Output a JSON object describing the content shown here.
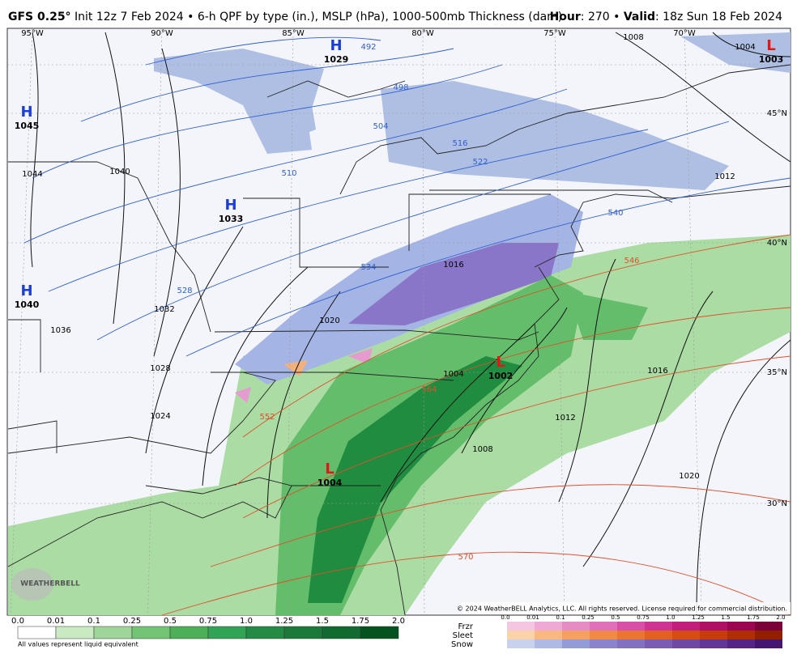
{
  "header": {
    "model": "GFS 0.25°",
    "description": "Init 12z 7 Feb 2024 • 6-h QPF by type (in.), MSLP (hPa), 1000-500mb Thickness (dam)",
    "hour_label": "Hour",
    "hour": ": 270",
    "separator": "•",
    "valid_label": "Valid",
    "valid": ": 18z Sun 18 Feb 2024"
  },
  "map": {
    "longitudes": [
      "95°W",
      "90°W",
      "85°W",
      "80°W",
      "75°W",
      "70°W"
    ],
    "latitudes": [
      "45°N",
      "40°N",
      "35°N",
      "30°N"
    ],
    "centers": [
      {
        "letter": "H",
        "value": "1029"
      },
      {
        "letter": "H",
        "value": "1045"
      },
      {
        "letter": "H",
        "value": "1033"
      },
      {
        "letter": "H",
        "value": "1040"
      },
      {
        "letter": "L",
        "value": "1003"
      },
      {
        "letter": "L",
        "value": "1002"
      },
      {
        "letter": "L",
        "value": "1004"
      }
    ],
    "isobar_labels": [
      "1008",
      "1004",
      "1012",
      "1044",
      "1040",
      "1036",
      "1032",
      "1028",
      "1024",
      "1020",
      "1016",
      "1004",
      "1008",
      "1012",
      "1016",
      "1020"
    ],
    "thickness_labels": [
      "492",
      "498",
      "504",
      "510",
      "516",
      "522",
      "528",
      "534",
      "540",
      "546",
      "552",
      "564",
      "570"
    ],
    "copyright": "© 2024 WeatherBELL Analytics, LLC. All rights reserved. License required for commercial distribution.",
    "logo": "WEATHERBELL"
  },
  "legend": {
    "qpf_ticks": [
      "0.0",
      "0.01",
      "0.1",
      "0.25",
      "0.5",
      "0.75",
      "1.0",
      "1.25",
      "1.5",
      "1.75",
      "2.0"
    ],
    "note": "All values represent liquid equivalent",
    "ptypes": [
      "Frzr",
      "Sleet",
      "Snow"
    ],
    "ptype_ticks": [
      "0.0",
      "0.01",
      "0.1",
      "0.25",
      "0.5",
      "0.75",
      "1.0",
      "1.25",
      "1.5",
      "1.75",
      "2.0"
    ]
  }
}
